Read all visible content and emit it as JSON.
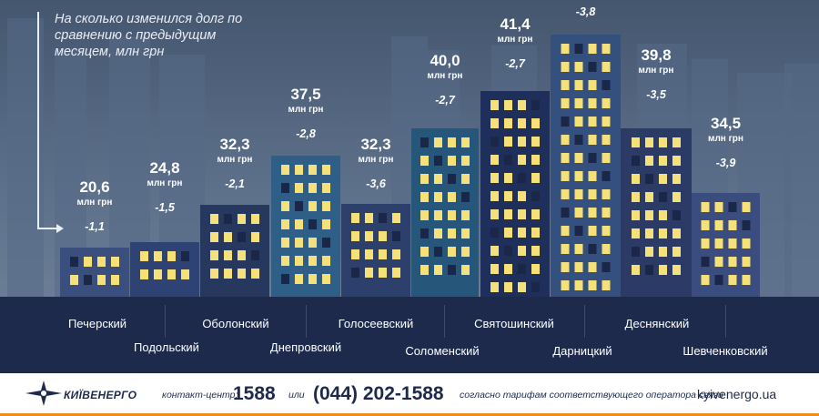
{
  "chart_data": {
    "type": "bar",
    "note": "На сколько изменился долг по сравнению с предыдущим месяцем, млн грн",
    "unit": "млн грн",
    "categories": [
      "Печерский",
      "Подольский",
      "Оболонский",
      "Днепровский",
      "Голосеевский",
      "Соломенский",
      "Святошинский",
      "Дарницкий",
      "Деснянский",
      "Шевченковский"
    ],
    "values": [
      20.6,
      24.8,
      32.3,
      37.5,
      32.3,
      40.0,
      41.4,
      null,
      39.8,
      34.5
    ],
    "value_labels": [
      "20,6",
      "24,8",
      "32,3",
      "37,5",
      "32,3",
      "40,0",
      "41,4",
      "",
      "39,8",
      "34,5"
    ],
    "change_labels": [
      "-1,1",
      "-1,5",
      "-2,1",
      "-2,8",
      "-3,6",
      "-2,7",
      "-2,7",
      "-3,8",
      "-3,5",
      "-3,9"
    ],
    "colors": {
      "buildings": [
        "#3a4f7e",
        "#2f4274",
        "#27385f",
        "#2f5f86",
        "#2d3f6b",
        "#26567a",
        "#1e2f5c",
        "#33507f",
        "#2c3b66",
        "#3a4d7e"
      ],
      "window": "#f6e07a",
      "window_pink": "#f2a896"
    }
  },
  "footer": {
    "logo_text": "КИЇВЕНЕРГО",
    "contact_label": "контакт-центр:",
    "short_number": "1588",
    "or_label": "или",
    "long_number": "(044) 202-1588",
    "tariff_note": "согласно тарифам соответствующего оператора связи",
    "website": "kyivenergo.ua"
  }
}
